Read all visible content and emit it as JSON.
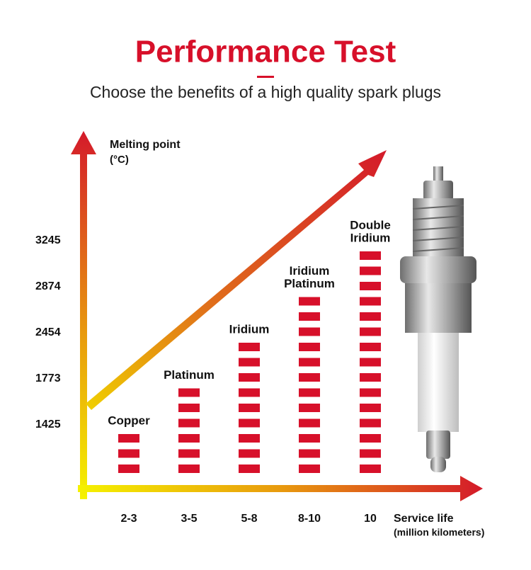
{
  "chart_data": {
    "type": "bar",
    "title": "Performance Test",
    "subtitle": "Choose the benefits of a high quality spark plugs",
    "y_label": [
      "Melting point",
      "(°C)"
    ],
    "x_label": [
      "Service life",
      "(million kilometers)"
    ],
    "categories": [
      "2-3",
      "3-5",
      "5-8",
      "8-10",
      "10"
    ],
    "bar_labels": [
      [
        "Copper"
      ],
      [
        "Platinum"
      ],
      [
        "Iridium"
      ],
      [
        "Iridium",
        "Platinum"
      ],
      [
        "Double",
        "Iridium"
      ]
    ],
    "values": [
      1425,
      1773,
      2454,
      2874,
      3245
    ],
    "yticks": [
      1425,
      1773,
      2454,
      2874,
      3245
    ],
    "color": "#d7102a"
  }
}
